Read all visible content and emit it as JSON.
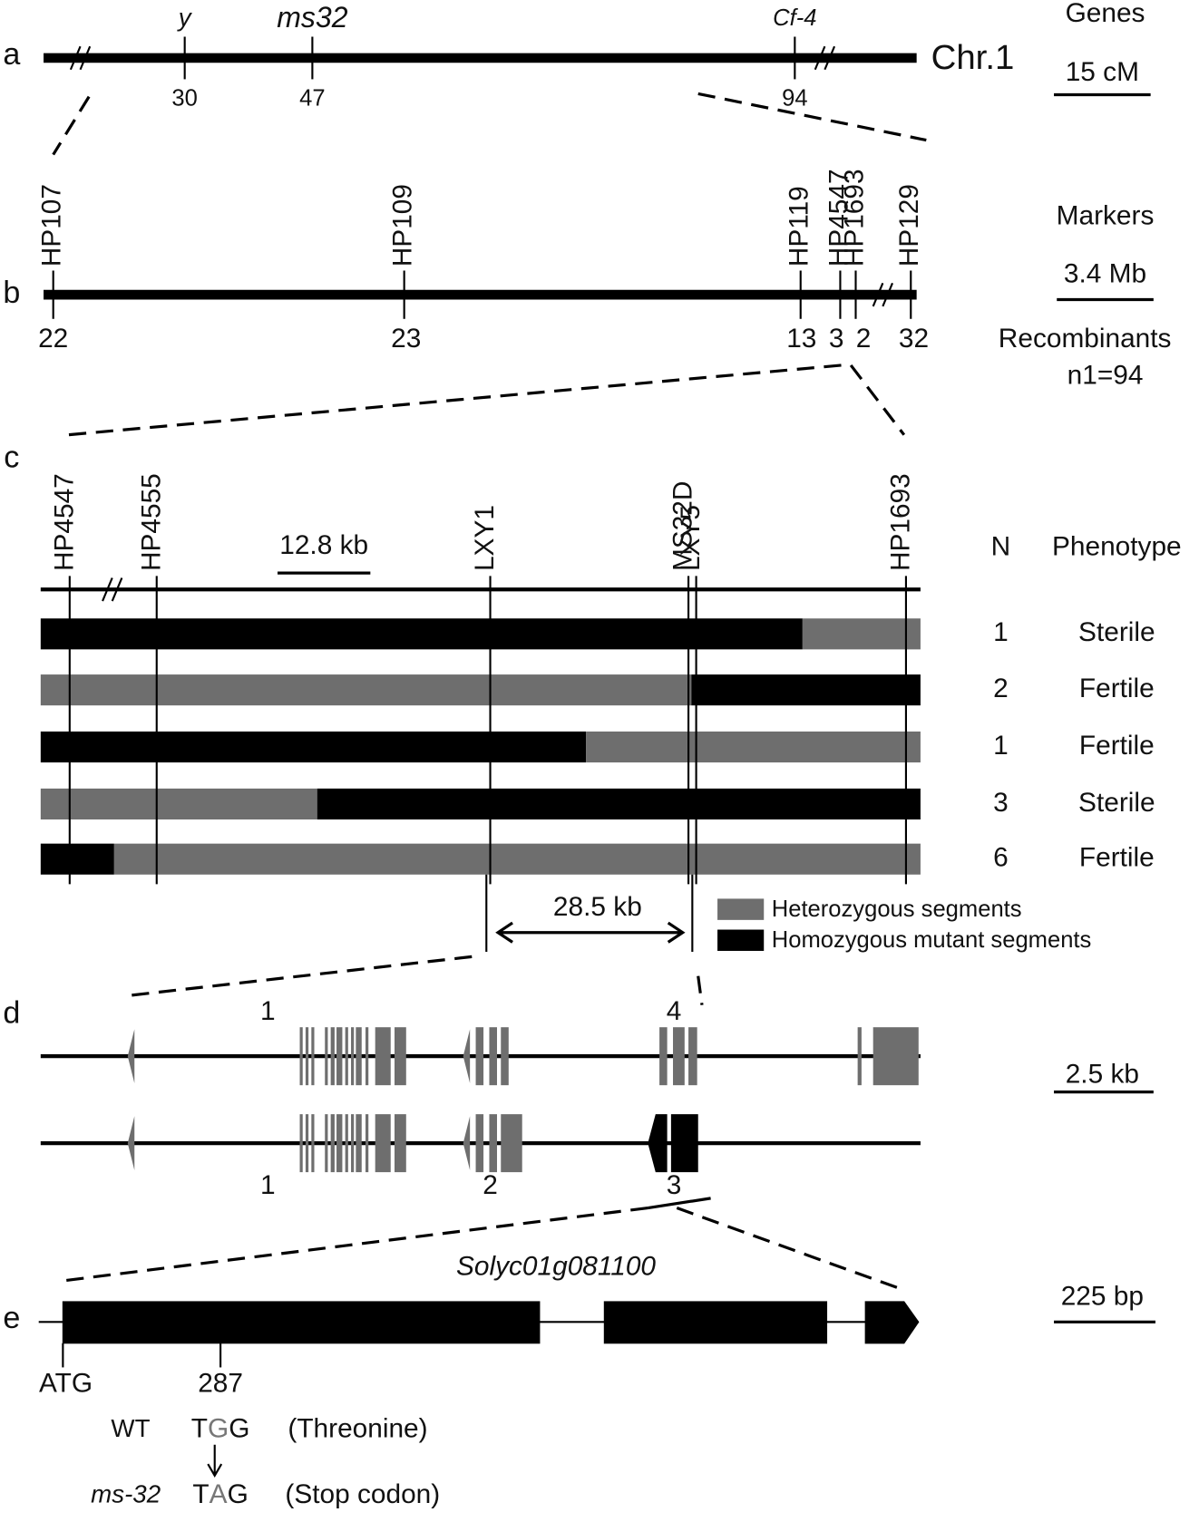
{
  "panels": {
    "a": {
      "label": "a",
      "header": "Genes",
      "chromosome": "Chr.1",
      "scale": "15 cM",
      "genes": [
        {
          "name": "y",
          "position": 30
        },
        {
          "name": "ms32",
          "position": 47
        },
        {
          "name": "Cf-4",
          "position": 94
        }
      ]
    },
    "b": {
      "label": "b",
      "header": "Markers",
      "scale": "3.4 Mb",
      "recombinants_header": "Recombinants",
      "sample_size": "n1=94",
      "markers": [
        {
          "name": "HP107",
          "recombinants": 22
        },
        {
          "name": "HP109",
          "recombinants": 23
        },
        {
          "name": "HP119",
          "recombinants": 13
        },
        {
          "name": "HP4547",
          "recombinants": 3
        },
        {
          "name": "HP1693",
          "recombinants": 2
        },
        {
          "name": "HP129",
          "recombinants": 32
        }
      ]
    },
    "c": {
      "label": "c",
      "scale": "12.8 kb",
      "markers": [
        "HP4547",
        "HP4555",
        "LXY1",
        "MS32D",
        "LXY5",
        "HP1693"
      ],
      "columns": [
        "N",
        "Phenotype"
      ],
      "rows": [
        {
          "n": 1,
          "phenotype": "Sterile"
        },
        {
          "n": 2,
          "phenotype": "Fertile"
        },
        {
          "n": 1,
          "phenotype": "Fertile"
        },
        {
          "n": 3,
          "phenotype": "Sterile"
        },
        {
          "n": 6,
          "phenotype": "Fertile"
        }
      ],
      "interval": "28.5 kb",
      "legend": [
        "Heterozygous segments",
        "Homozygous mutant segments"
      ]
    },
    "d": {
      "label": "d",
      "scale": "2.5 kb",
      "top_labels": [
        "1",
        "4"
      ],
      "bottom_labels": [
        "1",
        "2",
        "3"
      ]
    },
    "e": {
      "label": "e",
      "gene": "Solyc01g081100",
      "scale": "225 bp",
      "start": "ATG",
      "position": 287,
      "wt_label": "WT",
      "wt_codon": [
        "T",
        "G",
        "G"
      ],
      "wt_note": "(Threonine)",
      "mutant_label": "ms-32",
      "mutant_codon": [
        "T",
        "A",
        "G"
      ],
      "mutant_note": "(Stop codon)"
    }
  }
}
